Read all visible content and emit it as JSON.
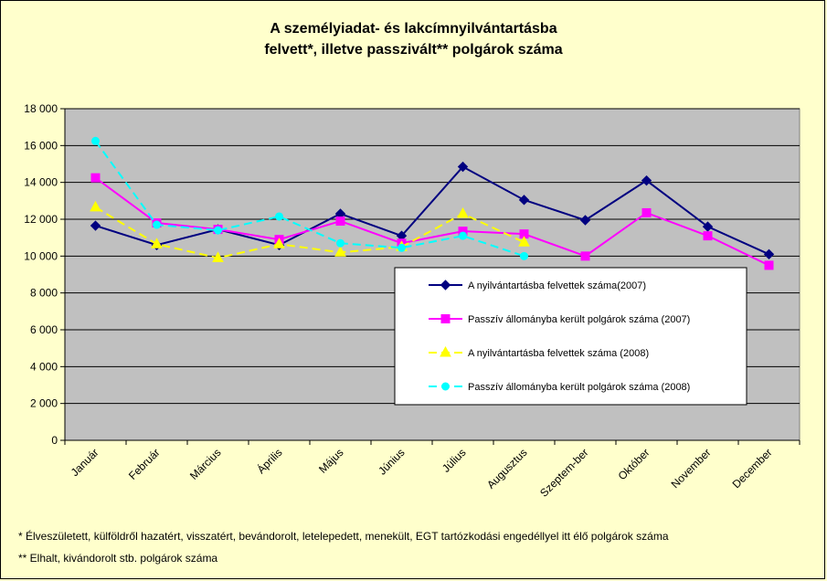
{
  "chart_data": {
    "type": "line",
    "title_lines": [
      "A személyiadat- és lakcímnyilvántartásba",
      "felvett*, illetve passzivált** polgárok száma"
    ],
    "categories": [
      "Január",
      "Február",
      "Március",
      "Április",
      "Május",
      "Június",
      "Július",
      "Augusztus",
      "Szeptem-ber",
      "Október",
      "November",
      "December"
    ],
    "ylim": [
      0,
      18000
    ],
    "yticks": [
      0,
      2000,
      4000,
      6000,
      8000,
      10000,
      12000,
      14000,
      16000,
      18000
    ],
    "ytick_labels": [
      "0",
      "2 000",
      "4 000",
      "6 000",
      "8 000",
      "10 000",
      "12 000",
      "14 000",
      "16 000",
      "18 000"
    ],
    "grid": true,
    "legend_position": "center-right",
    "plot_background": "#c0c0c0",
    "series": [
      {
        "name": "A nyilvántartásba felvettek száma(2007)",
        "color": "#000080",
        "marker": "diamond",
        "dash": "solid",
        "values": [
          11650,
          10600,
          11450,
          10600,
          12300,
          11100,
          14850,
          13050,
          11950,
          14100,
          11600,
          10100
        ]
      },
      {
        "name": "Passzív állományba került polgárok száma (2007)",
        "color": "#ff00ff",
        "marker": "square",
        "dash": "solid",
        "values": [
          14250,
          11800,
          11450,
          10900,
          11900,
          10700,
          11350,
          11200,
          10000,
          12350,
          11100,
          9500
        ]
      },
      {
        "name": "A nyilvántartásba felvettek száma (2008)",
        "color": "#ffff00",
        "marker": "triangle",
        "dash": "dashed",
        "values": [
          12650,
          10650,
          9900,
          10650,
          10200,
          10500,
          12300,
          10750,
          null,
          null,
          null,
          null
        ]
      },
      {
        "name": "Passzív állományba került polgárok száma (2008)",
        "color": "#00ffff",
        "marker": "circle",
        "dash": "dashed",
        "values": [
          16250,
          11700,
          11400,
          12150,
          10700,
          10450,
          11100,
          10000,
          null,
          null,
          null,
          null
        ]
      }
    ]
  },
  "footnotes": [
    "* Élveszületett,  külföldről hazatért,  visszatért,  bevándorolt,  letelepedett,  menekült,  EGT tartózkodási engedéllyel itt élő  polgárok száma",
    "** Elhalt,  kivándorolt stb.  polgárok száma"
  ]
}
